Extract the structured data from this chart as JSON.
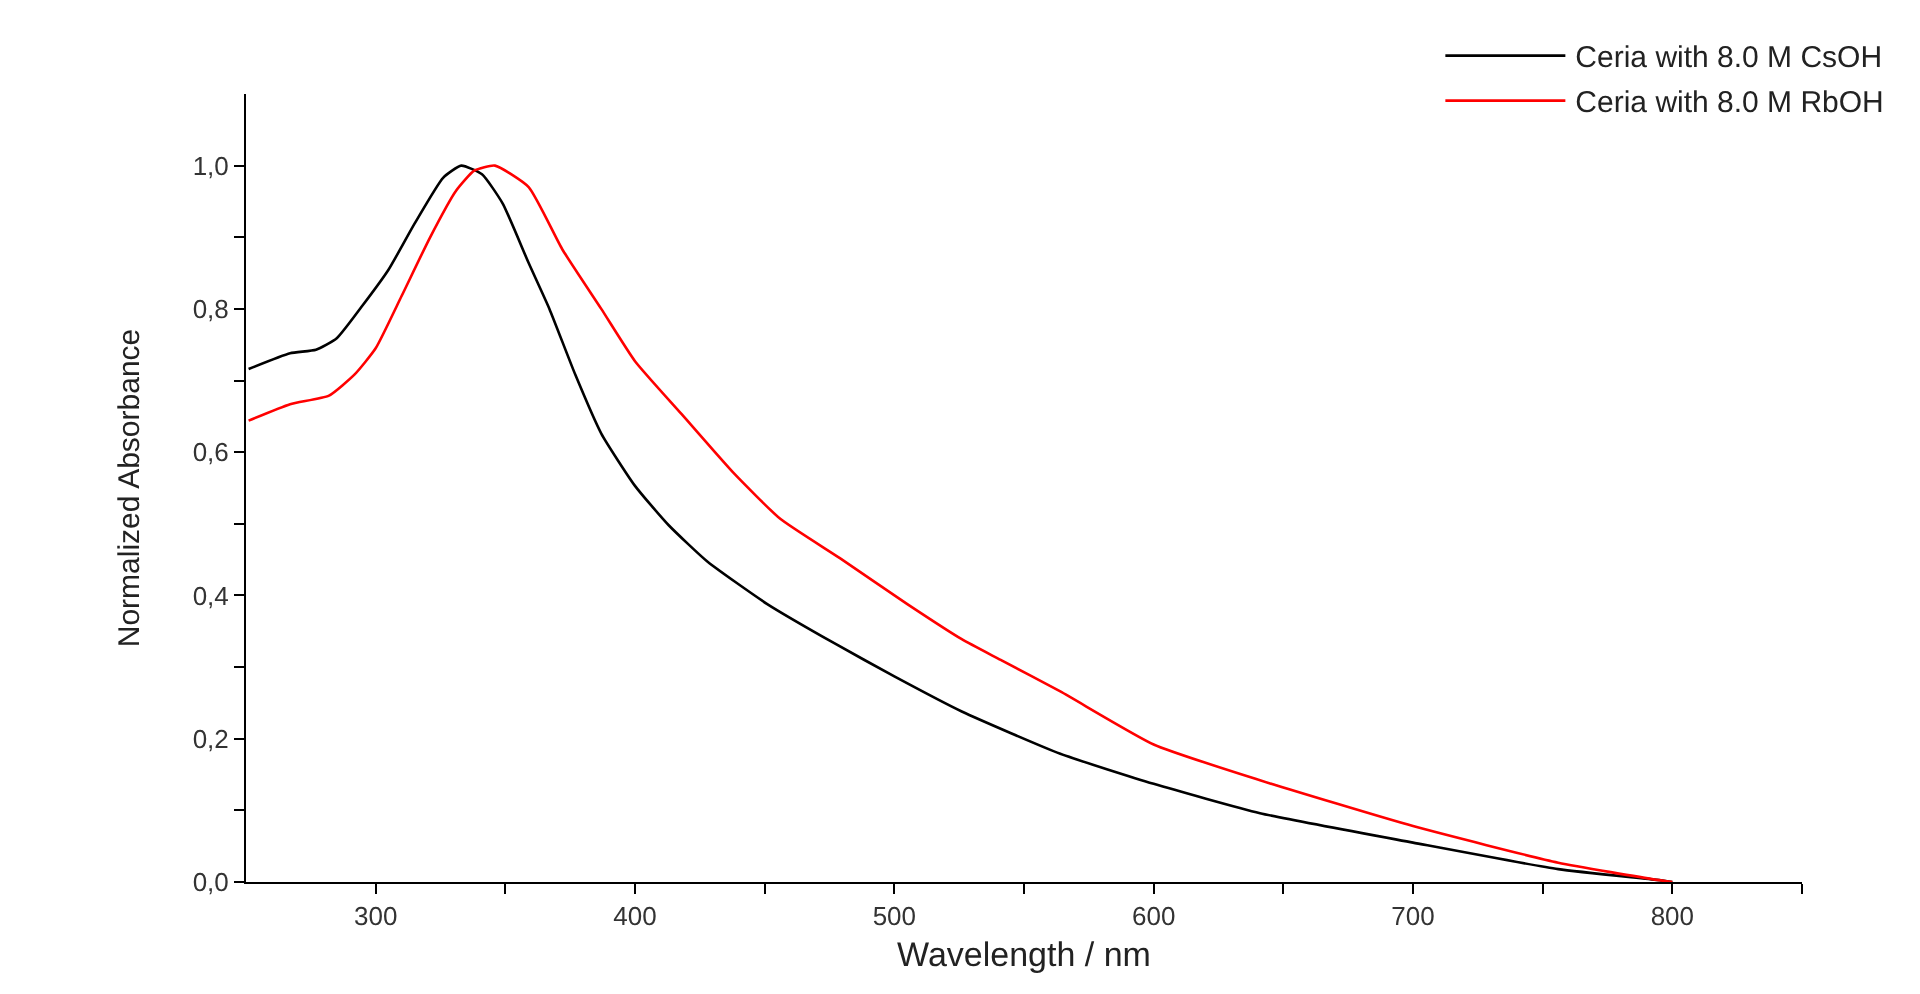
{
  "chart_data": {
    "type": "line",
    "xlabel": "Wavelength / nm",
    "ylabel": "Normalized Absorbance",
    "xlim": [
      250,
      850
    ],
    "ylim": [
      0,
      1.1
    ],
    "xticks": [
      300,
      {
        "value": 350,
        "label": null
      },
      400,
      {
        "value": 450,
        "label": null
      },
      500,
      {
        "value": 550,
        "label": null
      },
      600,
      {
        "value": 650,
        "label": null
      },
      700,
      {
        "value": 750,
        "label": null
      },
      800,
      {
        "value": 850,
        "label": null
      }
    ],
    "yticks": [
      {
        "value": 0,
        "label": "0,0"
      },
      {
        "value": 0.1,
        "label": null
      },
      {
        "value": 0.2,
        "label": "0,2"
      },
      {
        "value": 0.3,
        "label": null
      },
      {
        "value": 0.4,
        "label": "0,4"
      },
      {
        "value": 0.5,
        "label": null
      },
      {
        "value": 0.6,
        "label": "0,6"
      },
      {
        "value": 0.7,
        "label": null
      },
      {
        "value": 0.8,
        "label": "0,8"
      },
      {
        "value": 0.9,
        "label": null
      },
      {
        "value": 1.0,
        "label": "1,0"
      }
    ],
    "legend": "top right",
    "marker": "none",
    "line_style": "solid",
    "series": [
      {
        "name": "Ceria with 8.0 M CsOH",
        "color": "#000000",
        "x": [
          251,
          267,
          277,
          285,
          295,
          305,
          315,
          326,
          333,
          341,
          349,
          359,
          367,
          377,
          387,
          400,
          413,
          428,
          451,
          477,
          500,
          526,
          564,
          600,
          641,
          700,
          756,
          794,
          800
        ],
        "values": [
          0.716,
          0.738,
          0.743,
          0.759,
          0.805,
          0.855,
          0.919,
          0.983,
          1.0,
          0.988,
          0.947,
          0.864,
          0.8,
          0.708,
          0.626,
          0.553,
          0.498,
          0.447,
          0.388,
          0.333,
          0.287,
          0.238,
          0.179,
          0.137,
          0.096,
          0.055,
          0.018,
          0.003,
          0.0
        ]
      },
      {
        "name": "Ceria with 8.0 M RbOH",
        "color": "#ff0000",
        "x": [
          251,
          267,
          282,
          292,
          300,
          310,
          321,
          331,
          338,
          346,
          359,
          372,
          387,
          400,
          418,
          438,
          456,
          479,
          505,
          526,
          541,
          564,
          600,
          641,
          700,
          756,
          794,
          800
        ],
        "values": [
          0.644,
          0.667,
          0.679,
          0.709,
          0.745,
          0.818,
          0.9,
          0.965,
          0.993,
          1.0,
          0.97,
          0.883,
          0.8,
          0.727,
          0.653,
          0.571,
          0.507,
          0.452,
          0.388,
          0.339,
          0.31,
          0.266,
          0.192,
          0.142,
          0.078,
          0.027,
          0.003,
          0.0
        ]
      }
    ]
  }
}
